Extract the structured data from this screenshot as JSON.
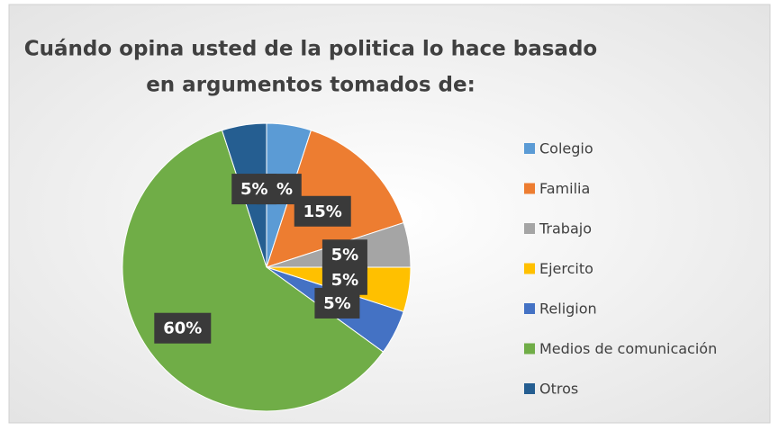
{
  "chart_data": {
    "type": "pie",
    "title": [
      "Cuándo opina usted de la politica lo hace basado",
      "en argumentos tomados de:"
    ],
    "categories": [
      "Colegio",
      "Familia",
      "Trabajo",
      "Ejercito",
      "Religion",
      "Medios de comunicación",
      "Otros"
    ],
    "values": [
      5,
      15,
      5,
      5,
      5,
      60,
      5
    ],
    "value_labels": [
      "5%",
      "15%",
      "5%",
      "5%",
      "5%",
      "60%",
      "5%"
    ],
    "colors": [
      "#5b9bd5",
      "#ed7d31",
      "#a5a5a5",
      "#ffc000",
      "#4472c4",
      "#70ad47",
      "#255e91"
    ],
    "legend": "right"
  }
}
